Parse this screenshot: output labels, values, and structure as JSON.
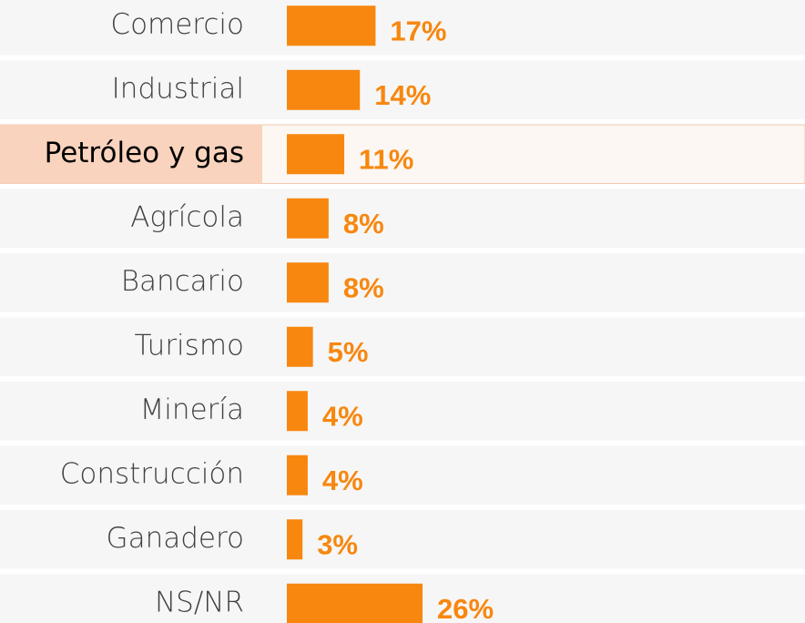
{
  "chart_data": {
    "type": "bar",
    "orientation": "horizontal",
    "categories": [
      "Comercio",
      "Industrial",
      "Petróleo y gas",
      "Agrícola",
      "Bancario",
      "Turismo",
      "Minería",
      "Construcción",
      "Ganadero",
      "NS/NR"
    ],
    "values": [
      17,
      14,
      11,
      8,
      8,
      5,
      4,
      4,
      3,
      26
    ],
    "value_labels": [
      "17%",
      "14%",
      "11%",
      "8%",
      "8%",
      "5%",
      "4%",
      "4%",
      "3%",
      "26%"
    ],
    "color": "#f7870f",
    "highlighted_category": 2,
    "highlight_color": "#f9d3bd"
  }
}
